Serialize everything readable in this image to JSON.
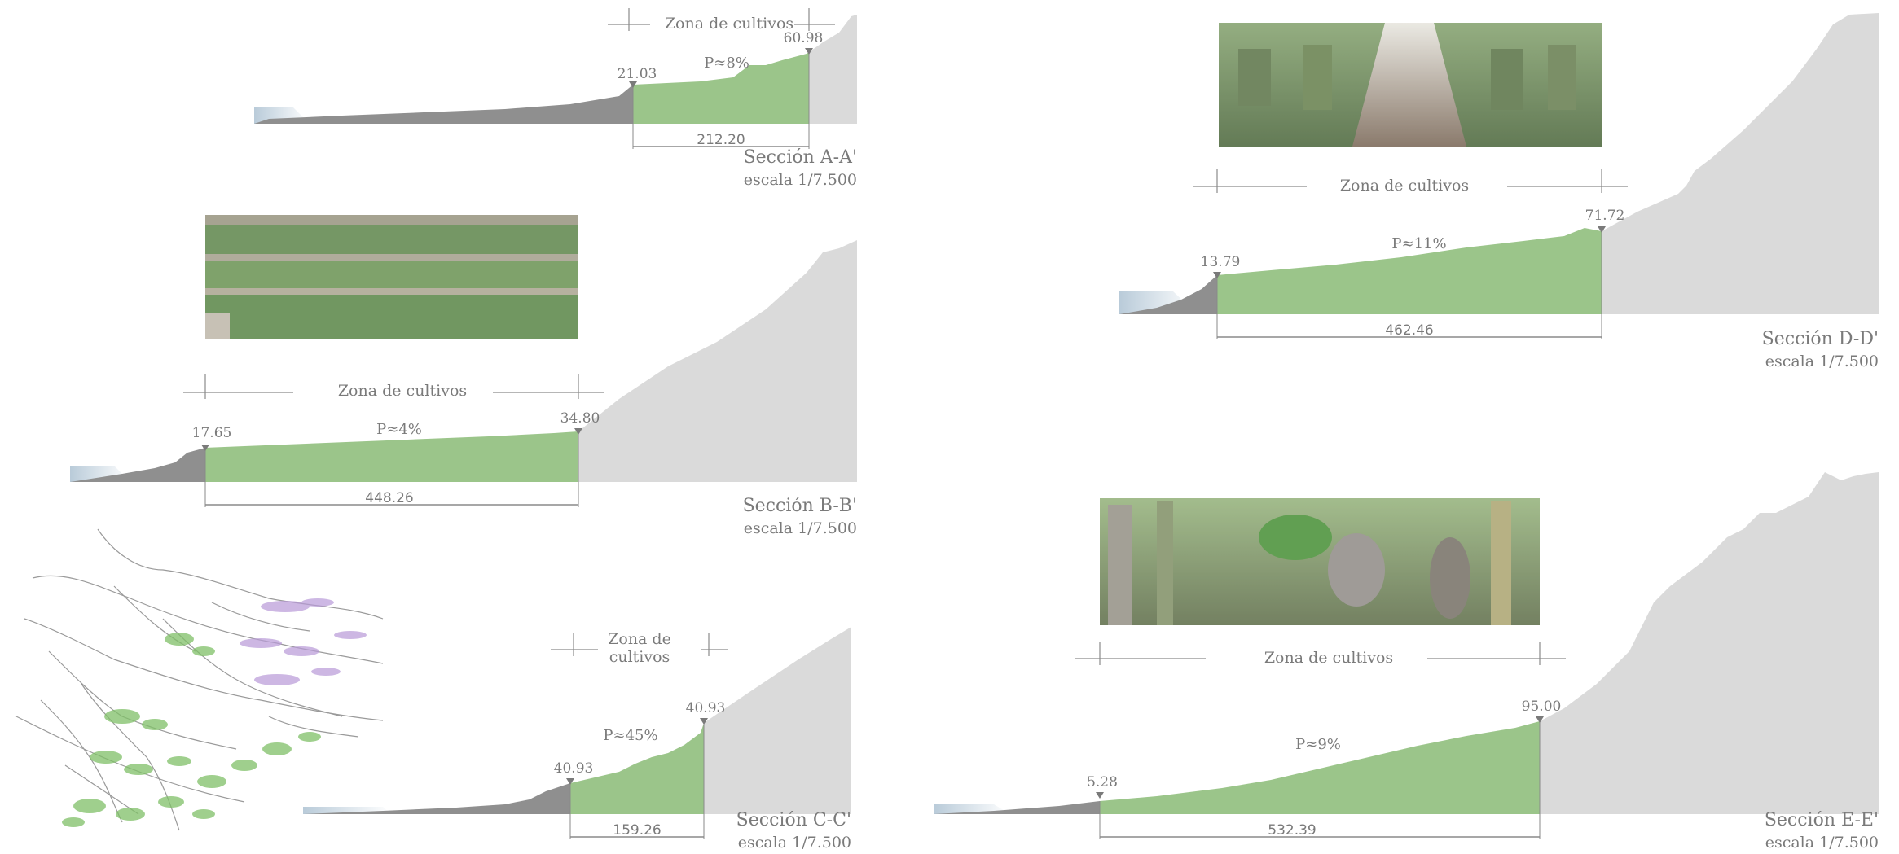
{
  "sections": [
    {
      "id": "A",
      "title": "Sección A-A'",
      "scale": "escala 1/7.500",
      "zone_label": "Zona de cultivos",
      "slope_label": "P≈8%",
      "elev_start": "21.03",
      "elev_end": "60.98",
      "length": "212.20"
    },
    {
      "id": "B",
      "title": "Sección B-B'",
      "scale": "escala 1/7.500",
      "zone_label": "Zona de cultivos",
      "slope_label": "P≈4%",
      "elev_start": "17.65",
      "elev_end": "34.80",
      "length": "448.26"
    },
    {
      "id": "C",
      "title": "Sección C-C'",
      "scale": "escala 1/7.500",
      "zone_label_line1": "Zona de",
      "zone_label_line2": "cultivos",
      "slope_label": "P≈45%",
      "elev_start": "40.93",
      "elev_end": "40.93",
      "length": "159.26"
    },
    {
      "id": "D",
      "title": "Sección D-D'",
      "scale": "escala 1/7.500",
      "zone_label": "Zona de cultivos",
      "slope_label": "P≈11%",
      "elev_start": "13.79",
      "elev_end": "71.72",
      "length": "462.46"
    },
    {
      "id": "E",
      "title": "Sección E-E'",
      "scale": "escala 1/7.500",
      "zone_label": "Zona de cultivos",
      "slope_label": "P≈9%",
      "elev_start": "5.28",
      "elev_end": "95.00",
      "length": "532.39"
    }
  ],
  "colors": {
    "crop": "#9bc58a",
    "terrain_low": "#8f8f8f",
    "terrain_high": "#d9d9d9",
    "sea": "#9fb8cc",
    "text": "#7a7a7a",
    "line": "#8a8a8a"
  },
  "photos": {
    "B": "banana-plantation-terraces-photo",
    "D": "banana-plantation-interior-photo",
    "E": "banana-harvest-workers-photo"
  },
  "sketch": "terraced-hillside-sketch"
}
